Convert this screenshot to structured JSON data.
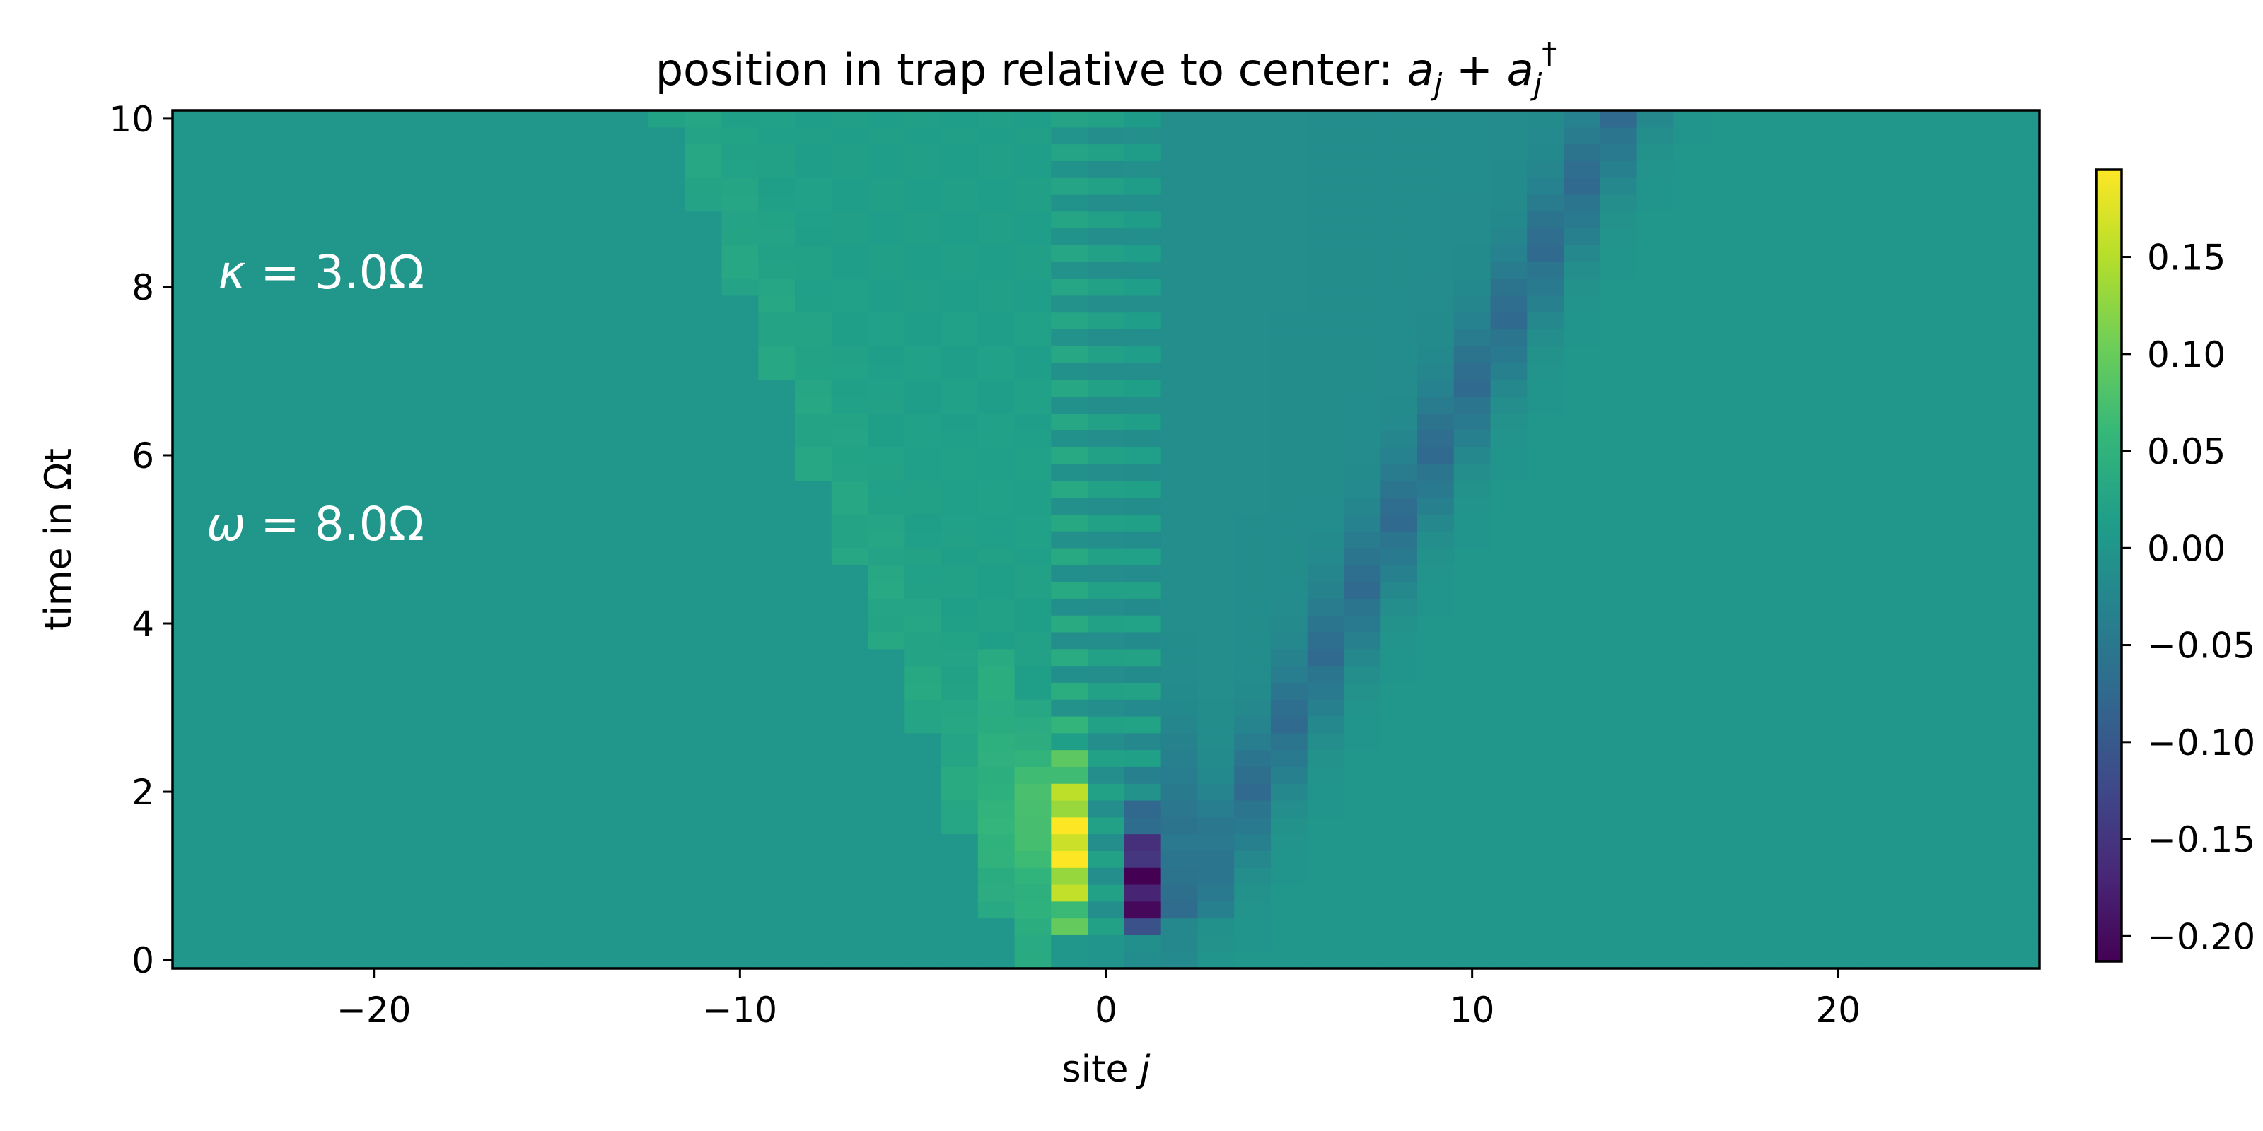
{
  "chart_data": {
    "type": "heatmap",
    "title": "position in trap relative to center: a_j + a_j^†",
    "title_prefix": "position in trap relative to center: ",
    "xlabel_prefix": "site ",
    "xlabel_var": "j",
    "ylabel": "time in Ωt",
    "x_range": [
      -25.5,
      25.5
    ],
    "y_range": [
      -0.1,
      10.1
    ],
    "x_ticks": [
      -20,
      -10,
      0,
      10,
      20
    ],
    "x_tick_labels": [
      "−20",
      "−10",
      "0",
      "10",
      "20"
    ],
    "y_ticks": [
      0,
      2,
      4,
      6,
      8,
      10
    ],
    "y_tick_labels": [
      "0",
      "2",
      "4",
      "6",
      "8",
      "10"
    ],
    "sites": {
      "min": -25,
      "max": 25
    },
    "time": {
      "min": 0.0,
      "max": 10.0,
      "steps": 51
    },
    "colormap": "viridis",
    "color_range": [
      -0.213,
      0.195
    ],
    "colorbar_ticks": [
      0.15,
      0.1,
      0.05,
      0.0,
      -0.05,
      -0.1,
      -0.15,
      -0.2
    ],
    "colorbar_tick_labels": [
      "0.15",
      "0.10",
      "0.05",
      "0.00",
      "−0.05",
      "−0.10",
      "−0.15",
      "−0.20"
    ],
    "annotations": [
      {
        "label": "κ = 3.0Ω",
        "symbol": "κ",
        "text": " = 3.0Ω"
      },
      {
        "label": "ω = 8.0Ω",
        "symbol": "ω",
        "text": " = 8.0Ω"
      }
    ],
    "approx_values": {
      "peak_max": {
        "site": -1,
        "time": 1.6,
        "value": 0.195
      },
      "peak_min": {
        "site": 1,
        "time": 0.8,
        "value": -0.213
      },
      "right_front": {
        "site_at_time_10": 14,
        "value": -0.05
      },
      "left_front": {
        "site_at_time_10": -11,
        "value": 0.03
      }
    }
  }
}
